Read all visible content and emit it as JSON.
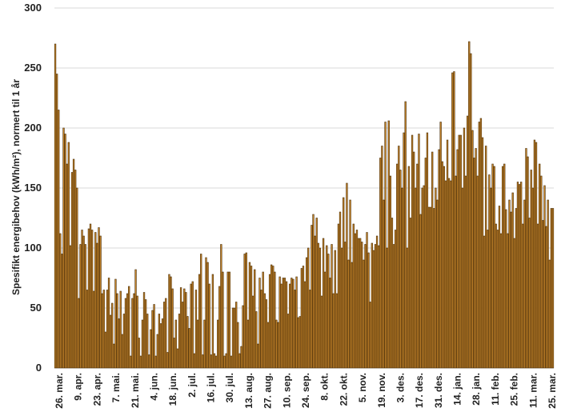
{
  "chart_data": {
    "type": "bar",
    "ylabel": "Spesifikt energibehov (kWh/m²), normert til 1 år",
    "ylim": [
      0,
      300
    ],
    "y_ticks": [
      0,
      50,
      100,
      150,
      200,
      250,
      300
    ],
    "grid": "horizontal",
    "bar_color": "#c8862a",
    "bar_edge_color": "#4a2e08",
    "grid_color": "#d9d9d9",
    "x_tick_labels": [
      "26. mar.",
      "9. apr.",
      "23. apr.",
      "7. mai.",
      "21. mai.",
      "4. jun.",
      "18. jun.",
      "2. jul.",
      "16. jul.",
      "30. jul.",
      "13. aug.",
      "27. aug.",
      "10. sep.",
      "24. sep.",
      "8. okt.",
      "22. okt.",
      "5. nov.",
      "19. nov.",
      "3. des.",
      "17. des.",
      "31. des.",
      "14. jan.",
      "28. jan.",
      "11. feb.",
      "25. feb.",
      "11. mar.",
      "25. mar."
    ],
    "values": [
      270,
      245,
      215,
      112,
      95,
      200,
      195,
      170,
      188,
      102,
      163,
      174,
      165,
      150,
      58,
      103,
      115,
      110,
      103,
      65,
      116,
      120,
      115,
      64,
      113,
      104,
      117,
      110,
      62,
      65,
      30,
      65,
      75,
      44,
      54,
      20,
      74,
      62,
      41,
      64,
      28,
      45,
      58,
      62,
      68,
      10,
      58,
      62,
      82,
      60,
      25,
      10,
      40,
      63,
      57,
      45,
      11,
      32,
      48,
      53,
      10,
      28,
      45,
      37,
      41,
      55,
      58,
      13,
      78,
      76,
      66,
      25,
      40,
      16,
      45,
      67,
      55,
      66,
      63,
      43,
      33,
      70,
      72,
      12,
      65,
      40,
      78,
      95,
      11,
      40,
      92,
      88,
      70,
      11,
      78,
      12,
      10,
      40,
      68,
      103,
      80,
      10,
      12,
      80,
      80,
      10,
      50,
      50,
      55,
      38,
      12,
      18,
      52,
      95,
      96,
      40,
      88,
      85,
      60,
      82,
      47,
      20,
      75,
      65,
      80,
      62,
      57,
      38,
      78,
      86,
      85,
      80,
      40,
      38,
      76,
      70,
      75,
      75,
      72,
      45,
      70,
      75,
      74,
      65,
      76,
      42,
      43,
      83,
      85,
      72,
      92,
      100,
      65,
      119,
      128,
      110,
      125,
      104,
      100,
      60,
      108,
      80,
      102,
      95,
      75,
      103,
      62,
      98,
      62,
      120,
      130,
      100,
      142,
      105,
      154,
      90,
      140,
      88,
      120,
      112,
      115,
      108,
      108,
      105,
      90,
      103,
      113,
      96,
      55,
      104,
      98,
      103,
      110,
      102,
      175,
      185,
      140,
      205,
      100,
      206,
      160,
      125,
      103,
      115,
      170,
      185,
      165,
      150,
      196,
      222,
      100,
      168,
      125,
      194,
      180,
      150,
      170,
      195,
      128,
      150,
      152,
      175,
      196,
      134,
      134,
      180,
      133,
      150,
      140,
      182,
      205,
      172,
      168,
      156,
      190,
      158,
      156,
      246,
      247,
      160,
      182,
      194,
      194,
      150,
      200,
      160,
      210,
      272,
      262,
      198,
      175,
      183,
      160,
      205,
      208,
      192,
      110,
      185,
      115,
      161,
      150,
      170,
      168,
      120,
      115,
      135,
      112,
      168,
      170,
      132,
      112,
      140,
      130,
      146,
      108,
      133,
      155,
      153,
      155,
      120,
      140,
      183,
      176,
      125,
      165,
      150,
      190,
      188,
      120,
      170,
      160,
      123,
      152,
      118,
      140,
      90,
      133,
      133
    ]
  }
}
